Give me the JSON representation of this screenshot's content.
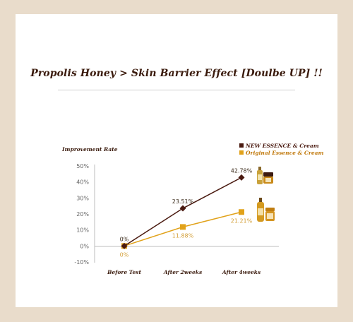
{
  "title": "Propolis Honey > Skin Barrier Effect [Doulbe UP] !!",
  "colors": {
    "background": "#e9dccb",
    "series1": "#4a1a10",
    "series2": "#e1a21a"
  },
  "chart_data": {
    "type": "line",
    "ylabel": "Improvement Rate",
    "categories": [
      "Before Test",
      "After 2weeks",
      "After 4weeks"
    ],
    "ylim": [
      -10,
      50
    ],
    "yticks": [
      50,
      40,
      30,
      20,
      10,
      0,
      -10
    ],
    "ytick_labels": [
      "50%",
      "40%",
      "30%",
      "20%",
      "10%",
      "0%",
      "-10%"
    ],
    "grid": false,
    "legend_position": "top-right",
    "series": [
      {
        "name": "NEW ESSENCE & Cream",
        "values": [
          0,
          23.51,
          42.78
        ],
        "labels": [
          "0%",
          "23.51%",
          "42.78%"
        ],
        "marker": "diamond",
        "color": "#4a1a10"
      },
      {
        "name": "Original Essence & Cream",
        "values": [
          0,
          11.88,
          21.21
        ],
        "labels": [
          "0%",
          "11.88%",
          "21.21%"
        ],
        "marker": "square",
        "color": "#e1a21a"
      }
    ]
  }
}
